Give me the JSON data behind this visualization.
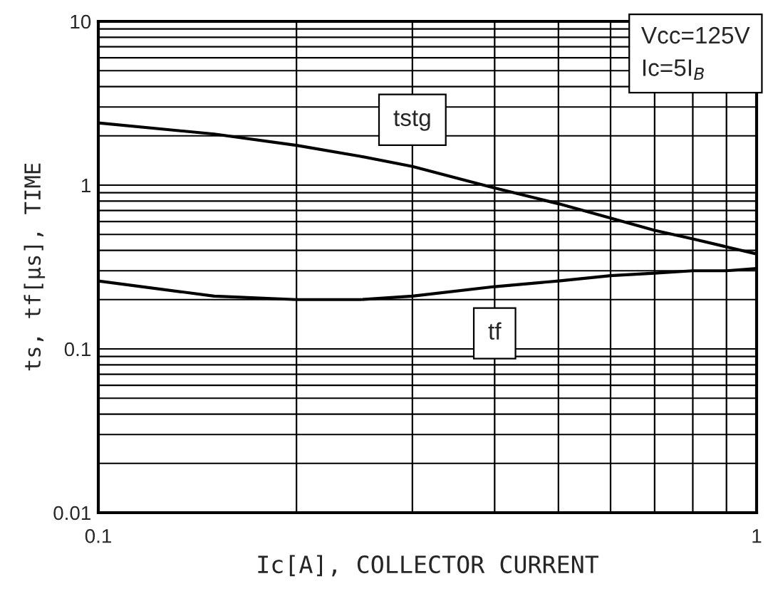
{
  "chart_data": {
    "type": "line",
    "xlabel": "Ic[A], COLLECTOR CURRENT",
    "ylabel": "ts, tf[μs], TIME",
    "x": [
      0.1,
      0.15,
      0.2,
      0.25,
      0.3,
      0.4,
      0.5,
      0.6,
      0.7,
      0.8,
      0.9,
      1
    ],
    "series": [
      {
        "name": "tstg",
        "color": "#000000",
        "values": [
          2.4,
          2.05,
          1.75,
          1.5,
          1.3,
          0.96,
          0.77,
          0.63,
          0.53,
          0.47,
          0.42,
          0.38
        ]
      },
      {
        "name": "tf",
        "color": "#000000",
        "values": [
          0.26,
          0.21,
          0.2,
          0.2,
          0.21,
          0.24,
          0.26,
          0.28,
          0.29,
          0.3,
          0.3,
          0.31
        ]
      }
    ],
    "annotations": [
      "Vcc=125V\nIc=5I$_{B}$"
    ],
    "log": "xy",
    "xlim": [
      0.1,
      1
    ],
    "ylim": [
      0.01,
      10
    ],
    "xticks": [
      0.1,
      1
    ],
    "yticks": [
      0.01,
      0.1,
      1,
      10
    ],
    "grid": true,
    "legend": false,
    "marker": "none",
    "line_style": "solid"
  }
}
